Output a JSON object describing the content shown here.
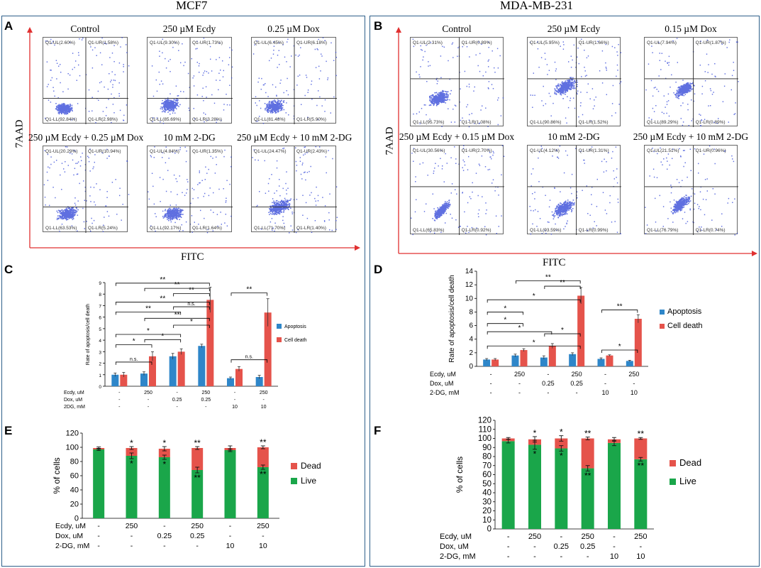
{
  "columns": {
    "left_title": "MCF7",
    "right_title": "MDA-MB-231"
  },
  "panels": {
    "A": "A",
    "B": "B",
    "C": "C",
    "D": "D",
    "E": "E",
    "F": "F"
  },
  "flow": {
    "y_label": "7AAD",
    "x_label": "FITC",
    "mcf7": [
      {
        "title": "Control",
        "ul": "Q1-UL(2.60%)",
        "ur": "Q1-UR(1.58%)",
        "ll": "Q1-LL(92.84%)",
        "lr": "Q1-LR(2.98%)"
      },
      {
        "title": "250 µM Ecdy",
        "ul": "Q1-UL(9.30%)",
        "ur": "Q1-UR(1.73%)",
        "ll": "Q1-LL(85.69%)",
        "lr": "Q1-LR(3.28%)"
      },
      {
        "title": "0.25 µM Dox",
        "ul": "Q1-UL(6.45%)",
        "ur": "Q1-UR(6.18%)",
        "ll": "Q1-LL(81.48%)",
        "lr": "Q1-LR(5.90%)"
      },
      {
        "title": "250 µM Ecdy + 0.25 µM Dox",
        "ul": "Q1-UL(20.29%)",
        "ur": "Q1-UR(10.94%)",
        "ll": "Q1-LL(63.53%)",
        "lr": "Q1-LR(5.24%)"
      },
      {
        "title": "10 mM 2-DG",
        "ul": "Q1-UL(4.84%)",
        "ur": "Q1-UR(1.35%)",
        "ll": "Q1-LL(92.17%)",
        "lr": "Q1-LR(1.64%)"
      },
      {
        "title": "250 µM Ecdy + 10 mM 2-DG",
        "ul": "Q1-UL(24.47%)",
        "ur": "Q1-UR(2.43%)",
        "ll": "Q1-LL(71.70%)",
        "lr": "Q1-LR(1.40%)"
      }
    ],
    "mda": [
      {
        "title": "Control",
        "ul": "Q1-UL(2.31%)",
        "ur": "Q1-UR(0.89%)",
        "ll": "Q1-LL(95.73%)",
        "lr": "Q1-LR(1.08%)"
      },
      {
        "title": "250 µM Ecdy",
        "ul": "Q1-UL(5.95%)",
        "ur": "Q1-UR(1.66%)",
        "ll": "Q1-LL(90.86%)",
        "lr": "Q1-LR(1.52%)"
      },
      {
        "title": "0.15 µM Dox",
        "ul": "Q1-UL(7.94%)",
        "ur": "Q1-UR(1.87%)",
        "ll": "Q1-LL(89.29%)",
        "lr": "Q1-LR(0.89%)"
      },
      {
        "title": "250 µM Ecdy + 0.15 µM Dox",
        "ul": "Q1-UL(30.56%)",
        "ur": "Q1-UR(2.70%)",
        "ll": "Q1-LL(65.83%)",
        "lr": "Q1-LR(0.92%)"
      },
      {
        "title": "10 mM 2-DG",
        "ul": "Q1-UL(4.12%)",
        "ur": "Q1-UR(1.31%)",
        "ll": "Q1-LL(93.59%)",
        "lr": "Q1-LR(0.99%)"
      },
      {
        "title": "250 µM Ecdy + 10 mM 2-DG",
        "ul": "Q1-UL(21.51%)",
        "ur": "Q1-UR(0.96%)",
        "ll": "Q1-LL(76.79%)",
        "lr": "Q1-LR(0.74%)"
      }
    ]
  },
  "chart_data": [
    {
      "id": "C",
      "type": "bar",
      "ylabel": "Rate of apoptosis/cell death",
      "ylim": [
        0,
        9
      ],
      "yticks": [
        0,
        1,
        2,
        3,
        4,
        5,
        6,
        7,
        8,
        9
      ],
      "series": [
        {
          "name": "Apoptosis",
          "color": "#2e86c9",
          "values": [
            1.0,
            1.1,
            2.6,
            3.5,
            0.7,
            0.8
          ],
          "errors": [
            0.15,
            0.15,
            0.25,
            0.15,
            0.1,
            0.15
          ]
        },
        {
          "name": "Cell death",
          "color": "#e5534b",
          "values": [
            1.0,
            2.6,
            3.0,
            7.5,
            1.5,
            6.4
          ],
          "errors": [
            0.2,
            0.4,
            0.25,
            1.1,
            0.2,
            1.2
          ]
        }
      ],
      "conditions": [
        {
          "label": "Ecdy, uM",
          "values": [
            "-",
            "250",
            "-",
            "250",
            "-",
            "250"
          ]
        },
        {
          "label": "Dox, uM",
          "values": [
            "-",
            "-",
            "0.25",
            "0.25",
            "-",
            "-"
          ]
        },
        {
          "label": "2DG, mM",
          "values": [
            "-",
            "-",
            "-",
            "-",
            "10",
            "10"
          ]
        }
      ],
      "brackets": [
        {
          "a": 0,
          "b": 3,
          "label": "**",
          "level": 8.95
        },
        {
          "a": 1,
          "b": 3,
          "label": "**",
          "level": 8.5
        },
        {
          "a": 2,
          "b": 3,
          "label": "**",
          "level": 8.05
        },
        {
          "a": 0,
          "b": 3,
          "label": "**",
          "level": 7.3
        },
        {
          "a": 2,
          "b": 3,
          "label": "n.s.",
          "level": 6.9
        },
        {
          "a": 0,
          "b": 2,
          "label": "**",
          "level": 6.45
        },
        {
          "a": 1,
          "b": 3,
          "label": "**",
          "level": 5.9
        },
        {
          "a": 2,
          "b": 3,
          "label": "*",
          "level": 5.3
        },
        {
          "a": 0,
          "b": 2,
          "label": "*",
          "level": 4.5
        },
        {
          "a": 1,
          "b": 2,
          "label": "*",
          "level": 4.05
        },
        {
          "a": 0,
          "b": 1,
          "label": "*",
          "level": 3.6
        },
        {
          "a": 0,
          "b": 1,
          "label": "n.s.",
          "level": 2.1
        },
        {
          "a": 4,
          "b": 5,
          "label": "**",
          "level": 8.1
        },
        {
          "a": 4,
          "b": 5,
          "label": "n.s.",
          "level": 2.3
        }
      ]
    },
    {
      "id": "D",
      "type": "bar",
      "ylabel": "Rate of apoptosis/cell death",
      "ylim": [
        0,
        14
      ],
      "yticks": [
        0,
        2,
        4,
        6,
        8,
        10,
        12,
        14
      ],
      "series": [
        {
          "name": "Apoptosis",
          "color": "#2e86c9",
          "values": [
            1.0,
            1.6,
            1.3,
            1.8,
            1.1,
            0.8
          ],
          "errors": [
            0.15,
            0.2,
            0.25,
            0.2,
            0.15,
            0.1
          ]
        },
        {
          "name": "Cell death",
          "color": "#e5534b",
          "values": [
            1.0,
            2.4,
            3.0,
            10.4,
            1.6,
            7.0
          ],
          "errors": [
            0.15,
            0.2,
            0.35,
            1.2,
            0.1,
            0.6
          ]
        }
      ],
      "conditions": [
        {
          "label": "Ecdy, uM",
          "values": [
            "-",
            "250",
            "-",
            "250",
            "-",
            "250"
          ]
        },
        {
          "label": "Dox, uM",
          "values": [
            "-",
            "-",
            "0.25",
            "0.25",
            "-",
            "-"
          ]
        },
        {
          "label": "2-DG, mM",
          "values": [
            "-",
            "-",
            "-",
            "-",
            "10",
            "10"
          ]
        }
      ],
      "brackets": [
        {
          "a": 1,
          "b": 3,
          "label": "**",
          "level": 12.6
        },
        {
          "a": 2,
          "b": 3,
          "label": "**",
          "level": 11.8
        },
        {
          "a": 0,
          "b": 3,
          "label": "*",
          "level": 9.8
        },
        {
          "a": 0,
          "b": 1,
          "label": "*",
          "level": 8.0
        },
        {
          "a": 0,
          "b": 1,
          "label": "*",
          "level": 6.3
        },
        {
          "a": 0,
          "b": 2,
          "label": "*",
          "level": 5.1
        },
        {
          "a": 2,
          "b": 3,
          "label": "*",
          "level": 4.8
        },
        {
          "a": 0,
          "b": 3,
          "label": "*",
          "level": 3.0
        },
        {
          "a": 4,
          "b": 5,
          "label": "**",
          "level": 8.3
        },
        {
          "a": 4,
          "b": 5,
          "label": "*",
          "level": 2.4
        }
      ]
    },
    {
      "id": "E",
      "type": "bar",
      "stacked": true,
      "ylabel": "% of cells",
      "ylim": [
        0,
        120
      ],
      "yticks": [
        0,
        20,
        40,
        60,
        80,
        100,
        120
      ],
      "series": [
        {
          "name": "Live",
          "color": "#1aa64a",
          "values": [
            97,
            88,
            86,
            68,
            96,
            72
          ],
          "errors": [
            1.5,
            4,
            3,
            4,
            2,
            3
          ]
        },
        {
          "name": "Dead",
          "color": "#e5534b",
          "values": [
            2,
            11,
            12,
            31,
            3,
            28
          ],
          "errors": [
            1.5,
            2,
            3,
            2,
            3,
            2
          ]
        }
      ],
      "live_sig": [
        "",
        "*",
        "*",
        "**",
        "",
        "**"
      ],
      "dead_sig": [
        "",
        "*",
        "*",
        "**",
        "",
        "**"
      ],
      "conditions": [
        {
          "label": "Ecdy, uM",
          "values": [
            "-",
            "250",
            "-",
            "250",
            "-",
            "250"
          ]
        },
        {
          "label": "Dox, uM",
          "values": [
            "-",
            "-",
            "0.25",
            "0.25",
            "-",
            "-"
          ]
        },
        {
          "label": "2-DG, mM",
          "values": [
            "-",
            "-",
            "-",
            "-",
            "10",
            "10"
          ]
        }
      ]
    },
    {
      "id": "F",
      "type": "bar",
      "stacked": true,
      "ylabel": "% of cells",
      "ylim": [
        0,
        120
      ],
      "yticks": [
        0,
        10,
        20,
        30,
        40,
        50,
        60,
        70,
        80,
        90,
        100,
        110,
        120
      ],
      "series": [
        {
          "name": "Live",
          "color": "#1aa64a",
          "values": [
            97,
            93,
            89,
            67,
            95,
            77
          ],
          "errors": [
            2,
            5,
            3,
            3,
            3,
            2
          ]
        },
        {
          "name": "Dead",
          "color": "#e5534b",
          "values": [
            3,
            6,
            11,
            33,
            4,
            23
          ],
          "errors": [
            1,
            3,
            3,
            1.5,
            2,
            1
          ]
        }
      ],
      "live_sig": [
        "",
        "*",
        "*",
        "**",
        "",
        "**"
      ],
      "dead_sig": [
        "",
        "*",
        "*",
        "**",
        "",
        "**"
      ],
      "conditions": [
        {
          "label": "Ecdy, uM",
          "values": [
            "-",
            "250",
            "-",
            "250",
            "-",
            "250"
          ]
        },
        {
          "label": "Dox, uM",
          "values": [
            "-",
            "-",
            "0.25",
            "0.25",
            "-",
            "-"
          ]
        },
        {
          "label": "2-DG, mM",
          "values": [
            "-",
            "-",
            "-",
            "-",
            "10",
            "10"
          ]
        }
      ]
    }
  ]
}
